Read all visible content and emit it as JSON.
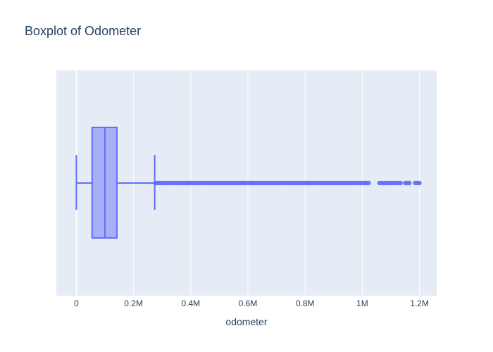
{
  "chart_data": {
    "type": "box",
    "title": "Boxplot of Odometer",
    "xlabel": "odometer",
    "ylabel": "",
    "xlim": [
      -70000,
      1260000
    ],
    "x_ticks": [
      0,
      200000,
      400000,
      600000,
      800000,
      1000000,
      1200000
    ],
    "x_tick_labels": [
      "0",
      "0.2M",
      "0.4M",
      "0.6M",
      "0.8M",
      "1M",
      "1.2M"
    ],
    "grid": true,
    "legend": "none",
    "box": {
      "whisker_low": 0,
      "q1": 55000,
      "median": 100000,
      "q3": 142000,
      "whisker_high": 274000
    },
    "outlier_ranges": [
      [
        276000,
        1028000
      ],
      [
        1060000,
        1135000
      ],
      [
        1150000,
        1165000
      ],
      [
        1185000,
        1205000
      ]
    ],
    "colors": {
      "plot_bg": "#e5ecf6",
      "grid": "#ffffff",
      "box_fill": "#a8b0f5",
      "box_line": "#636efa",
      "text": "#2a3f5f"
    }
  }
}
